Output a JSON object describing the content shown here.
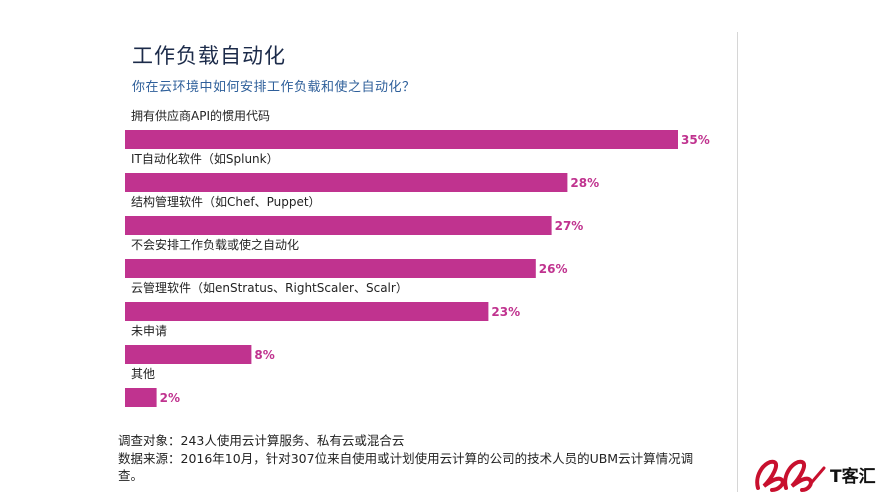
{
  "chart_data": {
    "type": "bar",
    "orientation": "horizontal",
    "title": "工作负载自动化",
    "subtitle": "你在云环境中如何安排工作负载和使之自动化？",
    "categories": [
      "拥有供应商API的惯用代码",
      "IT自动化软件（如Splunk）",
      "结构管理软件（如Chef、Puppet）",
      "不会安排工作负载或使之自动化",
      "云管理软件（如enStratus、RightScaler、Scalr）",
      "未申请",
      "其他"
    ],
    "values": [
      35,
      28,
      27,
      26,
      23,
      8,
      2
    ],
    "value_labels": [
      "35%",
      "28%",
      "27%",
      "26%",
      "23%",
      "8%",
      "2%"
    ],
    "unit": "%",
    "xlim": [
      0,
      35
    ],
    "grid": false,
    "bar_color": "#c0338f"
  },
  "notes": {
    "survey": "调查对象：243人使用云计算服务、私有云或混合云",
    "source": "数据来源：2016年10月，针对307位来自使用或计划使用云计算的公司的技术人员的UBM云计算情况调查。"
  },
  "logo": {
    "text": "T客汇",
    "color": "#c8102e"
  }
}
